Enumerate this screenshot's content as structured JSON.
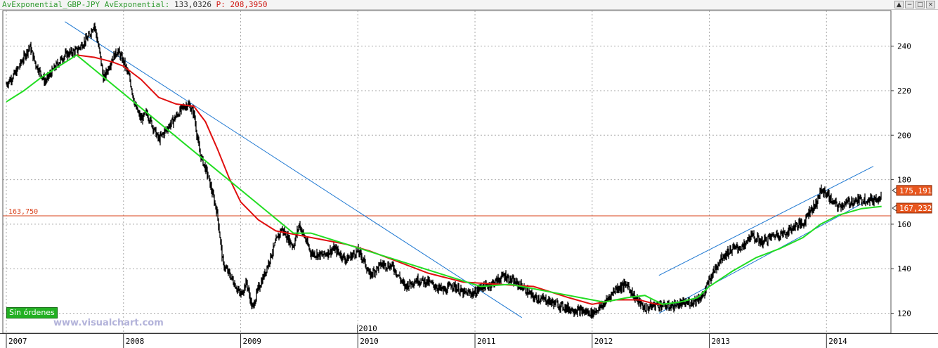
{
  "legend": {
    "instrument": "AvExponential_GBP-JPY AvExponential:",
    "value": "133,0326",
    "p_label": "P:",
    "p_value": "208,3950"
  },
  "window_buttons": [
    "▲",
    "−",
    "□",
    "×"
  ],
  "badges": {
    "sin_ordenes": "Sin órdenes"
  },
  "watermark": "www.visualchart.com",
  "colors": {
    "price": "#000000",
    "ema_red": "#e01010",
    "ema_green": "#22dd22",
    "trendline": "#1e78d2",
    "hline": "#d9401a",
    "grid": "#a9a9a9",
    "price_tag_bg": "#e8561e"
  },
  "chart_data": {
    "type": "line",
    "instrument": "GBP-JPY",
    "x_ticks": [
      "2007",
      "2008",
      "2009",
      "2010",
      "2011",
      "2012",
      "2013",
      "2014"
    ],
    "extra_x_label": "2010",
    "y_ticks": [
      120,
      140,
      160,
      180,
      200,
      220,
      240
    ],
    "ylim": [
      111,
      256
    ],
    "xlim": [
      2006.97,
      2014.55
    ],
    "grid": true,
    "hline": {
      "value": 163.75,
      "label": "163,750"
    },
    "price_tags": [
      {
        "value": 175.191,
        "label": "175,191"
      },
      {
        "value": 167.232,
        "label": "167,232"
      }
    ],
    "series": [
      {
        "key": "price",
        "style": "black bars",
        "x": [
          2007.0,
          2007.08,
          2007.2,
          2007.25,
          2007.33,
          2007.45,
          2007.5,
          2007.6,
          2007.7,
          2007.75,
          2007.8,
          2007.83,
          2007.9,
          2007.95,
          2008.0,
          2008.05,
          2008.1,
          2008.15,
          2008.2,
          2008.3,
          2008.4,
          2008.5,
          2008.55,
          2008.6,
          2008.65,
          2008.72,
          2008.8,
          2008.85,
          2008.92,
          2009.0,
          2009.05,
          2009.1,
          2009.15,
          2009.2,
          2009.3,
          2009.35,
          2009.45,
          2009.5,
          2009.6,
          2009.7,
          2009.8,
          2009.9,
          2010.0,
          2010.05,
          2010.1,
          2010.2,
          2010.3,
          2010.4,
          2010.5,
          2010.6,
          2010.7,
          2010.75,
          2010.8,
          2010.9,
          2011.0,
          2011.05,
          2011.1,
          2011.2,
          2011.25,
          2011.3,
          2011.4,
          2011.5,
          2011.6,
          2011.7,
          2011.8,
          2011.9,
          2012.0,
          2012.1,
          2012.2,
          2012.3,
          2012.35,
          2012.45,
          2012.55,
          2012.65,
          2012.75,
          2012.85,
          2012.95,
          2013.0,
          2013.1,
          2013.2,
          2013.3,
          2013.35,
          2013.45,
          2013.55,
          2013.65,
          2013.75,
          2013.8,
          2013.85,
          2013.9,
          2013.95,
          2014.0,
          2014.05,
          2014.1,
          2014.2,
          2014.3,
          2014.4,
          2014.47
        ],
        "y": [
          223,
          228,
          240,
          232,
          224,
          233,
          236,
          238,
          244,
          250,
          236,
          225,
          234,
          238,
          233,
          226,
          213,
          207,
          210,
          198,
          205,
          212,
          214,
          210,
          192,
          182,
          165,
          142,
          136,
          128,
          134,
          122,
          131,
          137,
          152,
          158,
          150,
          160,
          147,
          146,
          149,
          144,
          148,
          144,
          137,
          142,
          141,
          132,
          135,
          134,
          131,
          130,
          133,
          129,
          129,
          132,
          132,
          135,
          137,
          135,
          132,
          127,
          126,
          124,
          122,
          121,
          120,
          124,
          131,
          133,
          128,
          122,
          124,
          123,
          124,
          125,
          128,
          135,
          145,
          149,
          150,
          155,
          152,
          155,
          156,
          160,
          160,
          166,
          168,
          175,
          174,
          170,
          168,
          170,
          171,
          171,
          173
        ]
      },
      {
        "key": "ema_red",
        "style": "red line",
        "x": [
          2007.6,
          2007.75,
          2007.9,
          2008.0,
          2008.15,
          2008.3,
          2008.45,
          2008.6,
          2008.7,
          2008.8,
          2008.9,
          2009.0,
          2009.15,
          2009.3,
          2009.5,
          2009.7,
          2009.9,
          2010.1,
          2010.3,
          2010.6,
          2010.9,
          2011.2,
          2011.5,
          2011.8,
          2012.0,
          2012.2,
          2012.4,
          2012.55,
          2012.6
        ],
        "y": [
          236,
          235,
          233,
          231,
          225,
          217,
          214,
          213,
          206,
          194,
          181,
          170,
          162,
          157,
          155,
          153,
          151,
          148,
          144,
          138,
          134,
          133,
          132,
          127,
          124,
          126,
          126,
          124,
          124
        ]
      },
      {
        "key": "ema_green",
        "style": "green line",
        "x": [
          2007.0,
          2007.15,
          2007.3,
          2007.45,
          2007.6,
          2009.45,
          2009.6,
          2011.05,
          2011.3,
          2012.1,
          2012.3,
          2012.45,
          2012.6,
          2012.75,
          2012.9,
          2013.0,
          2013.2,
          2013.4,
          2013.6,
          2013.8,
          2013.95,
          2014.1,
          2014.3,
          2014.47
        ],
        "y": [
          215,
          220,
          226,
          231,
          236,
          156,
          156,
          132,
          133,
          125,
          127,
          128,
          124,
          125,
          127,
          132,
          139,
          145,
          149,
          154,
          160,
          164,
          167,
          168
        ]
      }
    ],
    "trendlines": [
      {
        "x1": 2007.5,
        "y1": 251,
        "x2": 2011.4,
        "y2": 118
      },
      {
        "x1": 2012.57,
        "y1": 137,
        "x2": 2014.4,
        "y2": 186
      },
      {
        "x1": 2012.57,
        "y1": 120,
        "x2": 2014.4,
        "y2": 172
      }
    ]
  }
}
